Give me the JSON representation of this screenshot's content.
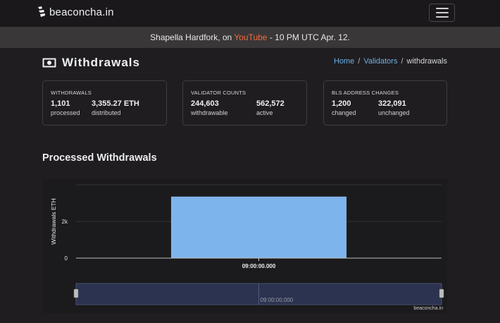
{
  "brand": {
    "name": "beaconcha.in",
    "logo_icon": "beaconchain-logo-icon"
  },
  "banner": {
    "prefix": "Shapella Hardfork, on ",
    "link": "YouTube",
    "suffix": " - 10 PM UTC Apr. 12."
  },
  "page": {
    "title": "Withdrawals",
    "icon": "money-icon"
  },
  "breadcrumb": {
    "home": "Home",
    "validators": "Validators",
    "current": "withdrawals",
    "separator": "/"
  },
  "cards": {
    "withdrawals": {
      "label": "WITHDRAWALS",
      "stat1": {
        "value": "1,101",
        "sub": "processed"
      },
      "stat2": {
        "value": "3,355.27 ETH",
        "sub": "distributed"
      }
    },
    "validators": {
      "label": "VALIDATOR COUNTS",
      "stat1": {
        "value": "244,603",
        "sub": "withdrawable"
      },
      "stat2": {
        "value": "562,572",
        "sub": "active"
      }
    },
    "bls": {
      "label": "BLS ADDRESS CHANGES",
      "stat1": {
        "value": "1,200",
        "sub": "changed"
      },
      "stat2": {
        "value": "322,091",
        "sub": "unchanged"
      }
    }
  },
  "section": {
    "title": "Processed Withdrawals"
  },
  "chart_data": {
    "type": "bar",
    "ylabel": "Withdrawals ETH",
    "y_ticks": [
      "0",
      "2k"
    ],
    "y_tick_values": [
      0,
      2000
    ],
    "ylim": [
      0,
      4000
    ],
    "categories": [
      "09:00:00.000"
    ],
    "values": [
      3355.27
    ],
    "bar_color": "#7eb4ec",
    "navigator_label": "09:00:00.000",
    "credit": "beaconcha.in"
  },
  "colors": {
    "accent_link": "#6fb0e6",
    "youtube": "#f26b3a",
    "background": "#1f1d20"
  }
}
